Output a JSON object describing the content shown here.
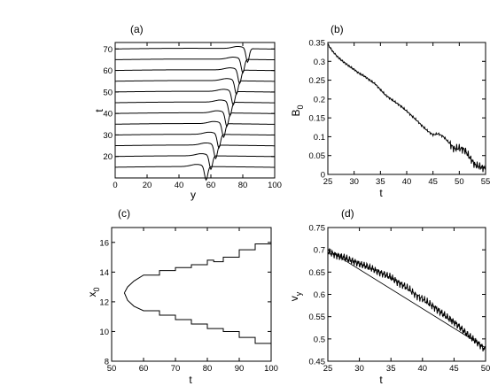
{
  "chart_data": [
    {
      "panel": "a",
      "title": "(a)",
      "type": "line",
      "xlabel": "y",
      "ylabel": "t",
      "xlim": [
        0,
        100
      ],
      "ylim": [
        10,
        73
      ],
      "xticks": [
        0,
        20,
        40,
        60,
        80,
        100
      ],
      "yticks": [
        20,
        30,
        40,
        50,
        60,
        70
      ],
      "grid": false,
      "series": [
        {
          "baseline": 15,
          "dip_y": 57,
          "dip_depth": 6.5
        },
        {
          "baseline": 20,
          "dip_y": 60,
          "dip_depth": 6.5
        },
        {
          "baseline": 25,
          "dip_y": 63,
          "dip_depth": 6.5
        },
        {
          "baseline": 30,
          "dip_y": 65,
          "dip_depth": 6.5
        },
        {
          "baseline": 35,
          "dip_y": 68,
          "dip_depth": 6.5
        },
        {
          "baseline": 40,
          "dip_y": 70,
          "dip_depth": 6.5
        },
        {
          "baseline": 45,
          "dip_y": 72,
          "dip_depth": 6.5
        },
        {
          "baseline": 50,
          "dip_y": 74,
          "dip_depth": 6.5
        },
        {
          "baseline": 55,
          "dip_y": 76,
          "dip_depth": 6.5
        },
        {
          "baseline": 60,
          "dip_y": 78,
          "dip_depth": 6.5
        },
        {
          "baseline": 65,
          "dip_y": 80,
          "dip_depth": 6.5
        },
        {
          "baseline": 70,
          "dip_y": 83,
          "dip_depth": 6.5
        }
      ]
    },
    {
      "panel": "b",
      "title": "(b)",
      "type": "line",
      "xlabel": "t",
      "ylabel": "B0",
      "xlim": [
        25,
        55
      ],
      "ylim": [
        0,
        0.35
      ],
      "xticks": [
        25,
        30,
        35,
        40,
        45,
        50,
        55
      ],
      "yticks": [
        0,
        0.05,
        0.1,
        0.15,
        0.2,
        0.25,
        0.3,
        0.35
      ],
      "grid": false,
      "x": [
        25,
        26,
        27,
        28,
        29,
        30,
        31,
        32,
        33,
        34,
        35,
        36,
        37,
        38,
        39,
        40,
        41,
        42,
        43,
        44,
        45,
        46,
        47,
        48,
        49,
        50,
        51,
        52,
        53,
        54,
        55
      ],
      "y": [
        0.345,
        0.325,
        0.31,
        0.298,
        0.288,
        0.278,
        0.268,
        0.26,
        0.25,
        0.24,
        0.225,
        0.21,
        0.2,
        0.19,
        0.18,
        0.168,
        0.155,
        0.142,
        0.128,
        0.115,
        0.105,
        0.108,
        0.1,
        0.085,
        0.068,
        0.07,
        0.065,
        0.045,
        0.025,
        0.02,
        0.015
      ]
    },
    {
      "panel": "c",
      "title": "(c)",
      "type": "line",
      "xlabel": "t",
      "ylabel": "x0",
      "xlim": [
        50,
        100
      ],
      "ylim": [
        8,
        17
      ],
      "xticks": [
        50,
        60,
        70,
        80,
        90,
        100
      ],
      "yticks": [
        8,
        10,
        12,
        14,
        16
      ],
      "grid": false,
      "series": [
        {
          "x": [
            54,
            55,
            57,
            60,
            65,
            70,
            75,
            80,
            82,
            85,
            90,
            95,
            100
          ],
          "y": [
            12.6,
            13.0,
            13.4,
            13.8,
            14.1,
            14.3,
            14.5,
            14.8,
            14.7,
            15.0,
            15.5,
            15.9,
            16.3
          ]
        },
        {
          "x": [
            54,
            55,
            57,
            60,
            65,
            70,
            75,
            80,
            82,
            85,
            90,
            95,
            100
          ],
          "y": [
            12.6,
            12.1,
            11.7,
            11.4,
            11.1,
            10.8,
            10.5,
            10.2,
            10.2,
            10.0,
            9.6,
            9.2,
            8.8
          ]
        }
      ]
    },
    {
      "panel": "d",
      "title": "(d)",
      "type": "line",
      "xlabel": "t",
      "ylabel": "vy",
      "xlim": [
        25,
        50
      ],
      "ylim": [
        0.45,
        0.75
      ],
      "xticks": [
        25,
        30,
        35,
        40,
        45,
        50
      ],
      "yticks": [
        0.45,
        0.5,
        0.55,
        0.6,
        0.65,
        0.7,
        0.75
      ],
      "grid": false,
      "series": [
        {
          "x": [
            25,
            26,
            27,
            28,
            29,
            30,
            31,
            32,
            33,
            34,
            35,
            36,
            37,
            38,
            39,
            40,
            41,
            42,
            43,
            44,
            45,
            46,
            47,
            48,
            49,
            50
          ],
          "y": [
            0.695,
            0.69,
            0.685,
            0.68,
            0.675,
            0.668,
            0.664,
            0.658,
            0.65,
            0.645,
            0.638,
            0.628,
            0.62,
            0.61,
            0.598,
            0.59,
            0.58,
            0.57,
            0.558,
            0.548,
            0.538,
            0.525,
            0.512,
            0.5,
            0.488,
            0.475
          ]
        },
        {
          "x": [
            25,
            50
          ],
          "y": [
            0.7,
            0.48
          ]
        }
      ]
    }
  ],
  "labels": {
    "a_title": "(a)",
    "b_title": "(b)",
    "c_title": "(c)",
    "d_title": "(d)",
    "a_xlabel": "y",
    "a_ylabel": "t",
    "b_xlabel": "t",
    "b_ylabel_main": "B",
    "b_ylabel_sub": "0",
    "c_xlabel": "t",
    "c_ylabel_main": "x",
    "c_ylabel_sub": "0",
    "d_xlabel": "t",
    "d_ylabel_main": "v",
    "d_ylabel_sub": "y"
  }
}
